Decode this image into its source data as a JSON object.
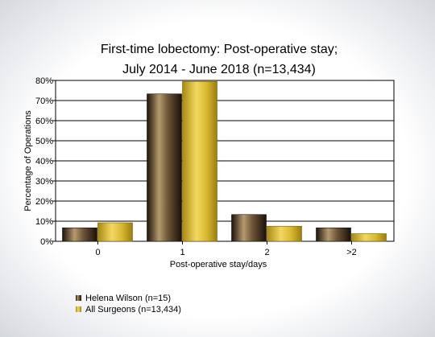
{
  "chart_data": {
    "type": "bar",
    "title_lines": [
      "First-time lobectomy: Post-operative stay;",
      "July 2014 - June 2018 (n=13,434)"
    ],
    "xlabel": "Post-operative stay/days",
    "ylabel": "Percentage of Operations",
    "categories": [
      "0",
      "1",
      "2",
      ">2"
    ],
    "ylim": [
      0,
      80
    ],
    "yticks": [
      0,
      10,
      20,
      30,
      40,
      50,
      60,
      70,
      80
    ],
    "ytick_suffix": "%",
    "grid": true,
    "legend_position": "bottom-left",
    "series": [
      {
        "name": "Helena Wilson (n=15)",
        "values": [
          6.7,
          73.3,
          13.3,
          6.7
        ],
        "color": "#3a2a1a"
      },
      {
        "name": "All Surgeons (n=13,434)",
        "values": [
          9.2,
          79.5,
          7.5,
          3.8
        ],
        "color": "#c9a824"
      }
    ]
  }
}
